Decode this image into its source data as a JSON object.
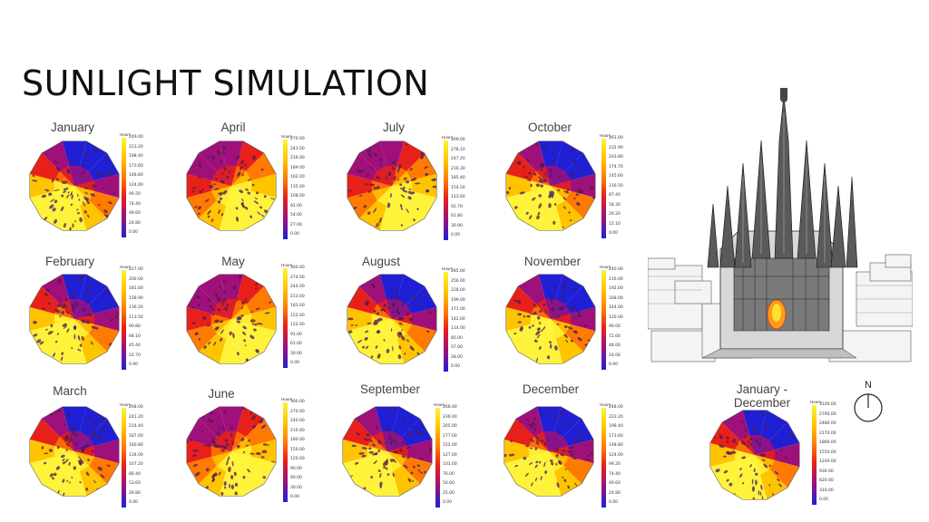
{
  "title": "SUNLIGHT SIMULATION",
  "legend_unit": "Hours",
  "compass_label": "N",
  "colors": {
    "high": "#fff33a",
    "mid_high": "#ffc400",
    "mid": "#ff7a00",
    "mid_low": "#e8201a",
    "low_mid": "#a0107a",
    "low": "#1f1fd6"
  },
  "panels": [
    {
      "label": "January",
      "ticks": [
        "249.00",
        "223.20",
        "198.40",
        "173.60",
        "148.80",
        "124.00",
        "99.20",
        "74.40",
        "49.60",
        "24.80",
        "0.00"
      ]
    },
    {
      "label": "April",
      "ticks": [
        "270.00",
        "243.00",
        "216.00",
        "189.00",
        "162.00",
        "135.00",
        "108.00",
        "81.00",
        "54.00",
        "27.00",
        "0.00"
      ]
    },
    {
      "label": "July",
      "ticks": [
        "309.00",
        "278.10",
        "247.20",
        "216.30",
        "185.40",
        "154.50",
        "123.60",
        "92.70",
        "61.80",
        "30.90",
        "0.00"
      ]
    },
    {
      "label": "October",
      "ticks": [
        "261.00",
        "232.90",
        "203.80",
        "174.70",
        "145.60",
        "116.50",
        "87.40",
        "58.30",
        "29.20",
        "15.10",
        "0.00"
      ]
    },
    {
      "label": "February",
      "ticks": [
        "227.00",
        "200.00",
        "181.60",
        "158.90",
        "136.20",
        "113.50",
        "90.80",
        "68.10",
        "45.40",
        "22.70",
        "0.00"
      ]
    },
    {
      "label": "May",
      "ticks": [
        "300.00",
        "274.00",
        "244.00",
        "213.00",
        "183.00",
        "152.00",
        "122.00",
        "91.00",
        "61.00",
        "30.00",
        "0.00"
      ]
    },
    {
      "label": "August",
      "ticks": [
        "285.00",
        "256.00",
        "228.00",
        "199.00",
        "171.00",
        "142.00",
        "114.00",
        "85.00",
        "57.00",
        "28.00",
        "0.00"
      ]
    },
    {
      "label": "November",
      "ticks": [
        "240.00",
        "216.00",
        "192.00",
        "168.00",
        "144.00",
        "120.00",
        "96.00",
        "72.00",
        "48.00",
        "24.00",
        "0.00"
      ]
    },
    {
      "label": "March",
      "ticks": [
        "268.00",
        "241.20",
        "214.40",
        "187.60",
        "160.80",
        "134.00",
        "107.20",
        "80.40",
        "53.60",
        "26.80",
        "0.00"
      ]
    },
    {
      "label": "June",
      "ticks": [
        "300.00",
        "270.00",
        "240.00",
        "210.00",
        "180.00",
        "150.00",
        "120.00",
        "90.00",
        "60.00",
        "30.00",
        "0.00"
      ]
    },
    {
      "label": "September",
      "ticks": [
        "266.00",
        "236.00",
        "205.00",
        "177.00",
        "152.00",
        "127.00",
        "101.00",
        "76.00",
        "50.00",
        "25.00",
        "0.00"
      ]
    },
    {
      "label": "December",
      "ticks": [
        "248.00",
        "223.20",
        "198.40",
        "173.60",
        "148.80",
        "124.00",
        "99.20",
        "74.40",
        "49.60",
        "24.80",
        "0.00"
      ]
    },
    {
      "label": "January - December",
      "ticks": [
        "3100.00",
        "2790.00",
        "2480.00",
        "2170.00",
        "1860.00",
        "1550.00",
        "1240.00",
        "930.00",
        "620.00",
        "310.00",
        "0.00"
      ]
    }
  ]
}
